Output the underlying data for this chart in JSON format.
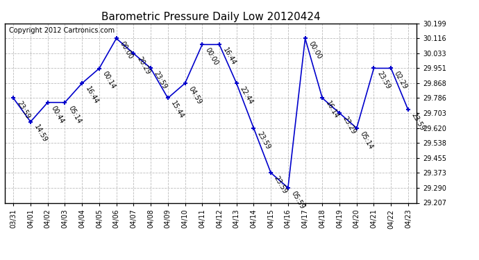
{
  "title": "Barometric Pressure Daily Low 20120424",
  "copyright": "Copyright 2012 Cartronics.com",
  "x_labels": [
    "03/31",
    "04/01",
    "04/02",
    "04/03",
    "04/04",
    "04/05",
    "04/06",
    "04/07",
    "04/08",
    "04/09",
    "04/10",
    "04/11",
    "04/12",
    "04/13",
    "04/14",
    "04/15",
    "04/16",
    "04/17",
    "04/18",
    "04/19",
    "04/20",
    "04/21",
    "04/22",
    "04/23"
  ],
  "y_values": [
    29.786,
    29.655,
    29.762,
    29.762,
    29.868,
    29.95,
    30.116,
    30.033,
    29.951,
    29.786,
    29.868,
    30.082,
    30.082,
    29.868,
    29.62,
    29.373,
    29.29,
    30.116,
    29.786,
    29.703,
    29.62,
    29.951,
    29.951,
    29.721
  ],
  "time_labels": [
    "23:59",
    "14:59",
    "00:44",
    "05:14",
    "16:44",
    "00:14",
    "00:00",
    "20:29",
    "23:59",
    "15:44",
    "04:59",
    "00:00",
    "16:44",
    "22:44",
    "23:59",
    "23:59",
    "05:59",
    "00:00",
    "16:14",
    "23:29",
    "05:14",
    "23:59",
    "02:29",
    "23:59"
  ],
  "y_ticks": [
    29.207,
    29.29,
    29.373,
    29.455,
    29.538,
    29.62,
    29.703,
    29.786,
    29.868,
    29.951,
    30.033,
    30.116,
    30.199
  ],
  "ylim": [
    29.207,
    30.199
  ],
  "line_color": "#0000cc",
  "marker_color": "#0000cc",
  "background_color": "#ffffff",
  "grid_color": "#bbbbbb",
  "title_fontsize": 11,
  "copyright_fontsize": 7,
  "tick_fontsize": 7,
  "annot_fontsize": 7
}
